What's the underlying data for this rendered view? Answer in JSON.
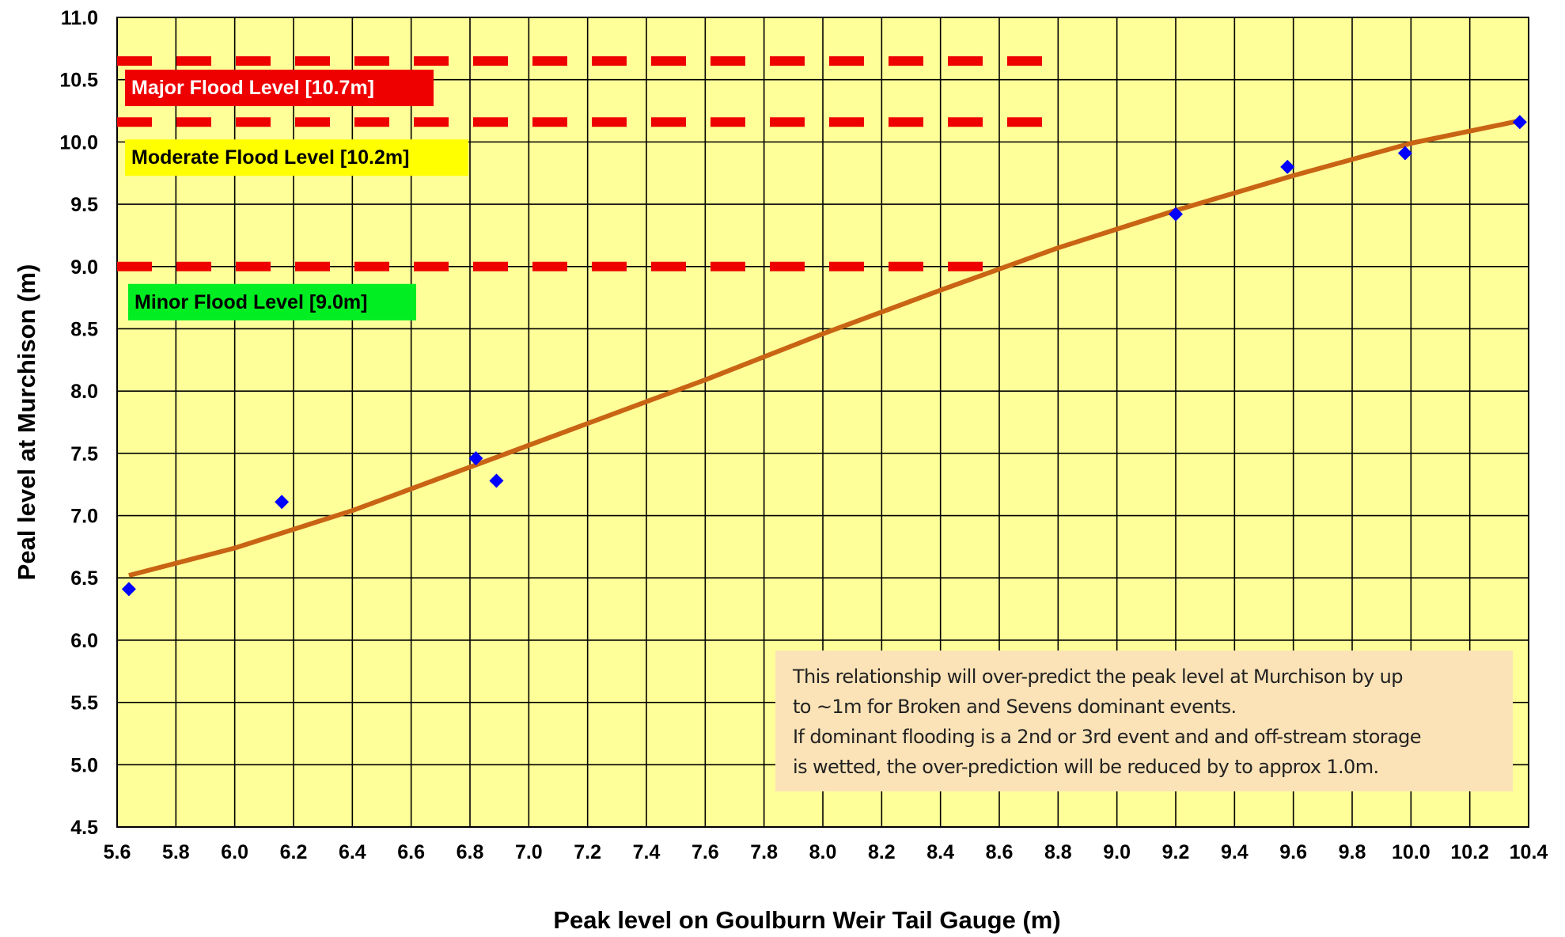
{
  "chart_data": {
    "type": "scatter",
    "xlabel": "Peak level on Goulburn Weir Tail Gauge (m)",
    "ylabel": "Peal level at Murchison (m)",
    "xlim": [
      5.6,
      10.4
    ],
    "ylim": [
      4.5,
      11.0
    ],
    "x_ticks": [
      "5.6",
      "5.8",
      "6.0",
      "6.2",
      "6.4",
      "6.6",
      "6.8",
      "7.0",
      "7.2",
      "7.4",
      "7.6",
      "7.8",
      "8.0",
      "8.2",
      "8.4",
      "8.6",
      "8.8",
      "9.0",
      "9.2",
      "9.4",
      "9.6",
      "9.8",
      "10.0",
      "10.2",
      "10.4"
    ],
    "y_ticks": [
      "4.5",
      "5.0",
      "5.5",
      "6.0",
      "6.5",
      "7.0",
      "7.5",
      "8.0",
      "8.5",
      "9.0",
      "9.5",
      "10.0",
      "10.5",
      "11.0"
    ],
    "grid": true,
    "background_color": "#ffff99",
    "points": {
      "color": "#0000ff",
      "marker": "diamond",
      "x": [
        5.64,
        6.16,
        6.82,
        6.89,
        9.2,
        9.58,
        9.98,
        10.37
      ],
      "y": [
        6.41,
        7.11,
        7.46,
        7.28,
        9.42,
        9.8,
        9.91,
        10.16
      ]
    },
    "trendline": {
      "color": "#c86414",
      "x": [
        5.64,
        6.0,
        6.4,
        6.8,
        7.2,
        7.6,
        8.0,
        8.4,
        8.8,
        9.2,
        9.6,
        10.0,
        10.37
      ],
      "y": [
        6.52,
        6.74,
        7.04,
        7.39,
        7.74,
        8.09,
        8.46,
        8.81,
        9.15,
        9.45,
        9.73,
        9.99,
        10.17
      ]
    },
    "flood_levels": [
      {
        "label": "Major Flood Level [10.7m]",
        "y": 10.65,
        "x_end": 8.8,
        "label_bg": "#ee0000",
        "label_color": "#ffffff"
      },
      {
        "label": "Moderate Flood Level  [10.2m]",
        "y": 10.16,
        "x_end": 8.8,
        "label_bg": "#ffff00",
        "label_color": "#000000"
      },
      {
        "label": "Minor Flood Level [9.0m]",
        "y": 9.0,
        "x_end": 8.6,
        "label_bg": "#00ee22",
        "label_color": "#000000"
      }
    ],
    "flood_line_color": "#ee0000",
    "annotation": [
      "This relationship will over-predict the peak level at Murchison by up",
      "to ~1m  for Broken and Sevens dominant events.",
      "If dominant flooding is a 2nd or 3rd  event and and off-stream storage",
      "is wetted, the over-prediction will be reduced by to approx 1.0m."
    ]
  }
}
